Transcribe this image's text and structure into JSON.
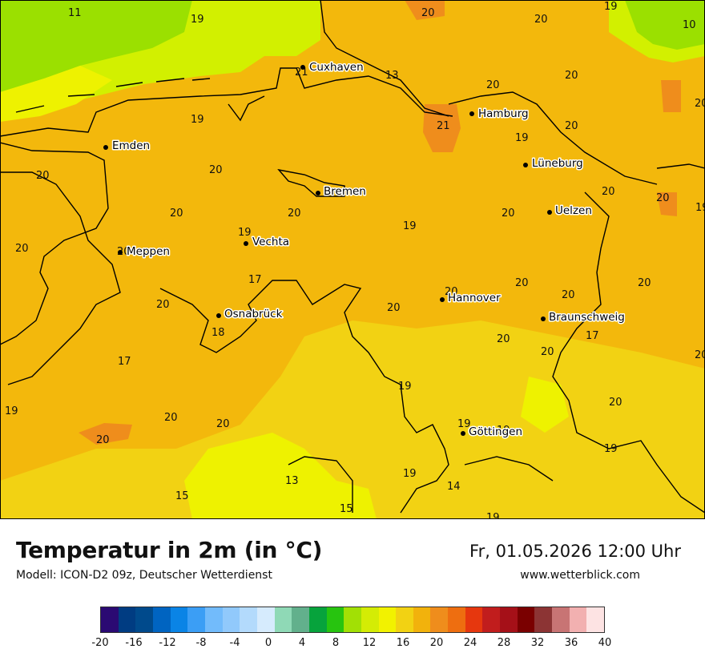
{
  "title": "Temperatur in 2m (in °C)",
  "subtitle": "Modell: ICON-D2 09z, Deutscher Wetterdienst",
  "datetime": "Fr, 01.05.2026 12:00 Uhr",
  "website": "www.wetterblick.com",
  "colors": {
    "sea_cool": "#9be000",
    "coast_band": "#d2f000",
    "main_land": "#f3b80c",
    "warm_spots": "#ef8d1c",
    "cooler_land": "#f2d213",
    "cool_south": "#eef200"
  },
  "cities": [
    {
      "name": "Cuxhaven"
    },
    {
      "name": "Hamburg"
    },
    {
      "name": "Emden"
    },
    {
      "name": "Lüneburg"
    },
    {
      "name": "Bremen"
    },
    {
      "name": "Uelzen"
    },
    {
      "name": "Vechta"
    },
    {
      "name": "Meppen"
    },
    {
      "name": "Hannover"
    },
    {
      "name": "Osnabrück"
    },
    {
      "name": "Braunschweig"
    },
    {
      "name": "Göttingen"
    }
  ],
  "temperature_labels": [
    "11",
    "19",
    "20",
    "20",
    "19",
    "10",
    "21",
    "13",
    "20",
    "20",
    "20",
    "20",
    "19",
    "21",
    "20",
    "19",
    "20",
    "20",
    "20",
    "20",
    "20",
    "20",
    "19",
    "19",
    "19",
    "20",
    "20",
    "20",
    "20",
    "17",
    "20",
    "20",
    "20",
    "20",
    "18",
    "20",
    "20",
    "17",
    "17",
    "20",
    "19",
    "20",
    "20",
    "20",
    "19",
    "19",
    "19",
    "19",
    "14",
    "13",
    "15",
    "15",
    "19",
    "19",
    "20"
  ],
  "legend": {
    "colors": [
      "#2b0a73",
      "#003c82",
      "#004a8c",
      "#0064c1",
      "#0a84e6",
      "#3b9ef5",
      "#72bbfb",
      "#91c9fb",
      "#b3dafc",
      "#d6ebfd",
      "#8fd9b6",
      "#62b08c",
      "#07a33c",
      "#27c40f",
      "#a2e005",
      "#d4ec05",
      "#f2f200",
      "#f2d213",
      "#f2b20c",
      "#ef8d1c",
      "#ee6e10",
      "#e6370e",
      "#c11d1d",
      "#a51018",
      "#7a0000",
      "#8c3434",
      "#c87474",
      "#f2b0b0",
      "#fde3e3"
    ],
    "tick_labels": [
      "-20",
      "-16",
      "-12",
      "-8",
      "-4",
      "0",
      "4",
      "8",
      "12",
      "16",
      "20",
      "24",
      "28",
      "32",
      "36",
      "40"
    ]
  }
}
